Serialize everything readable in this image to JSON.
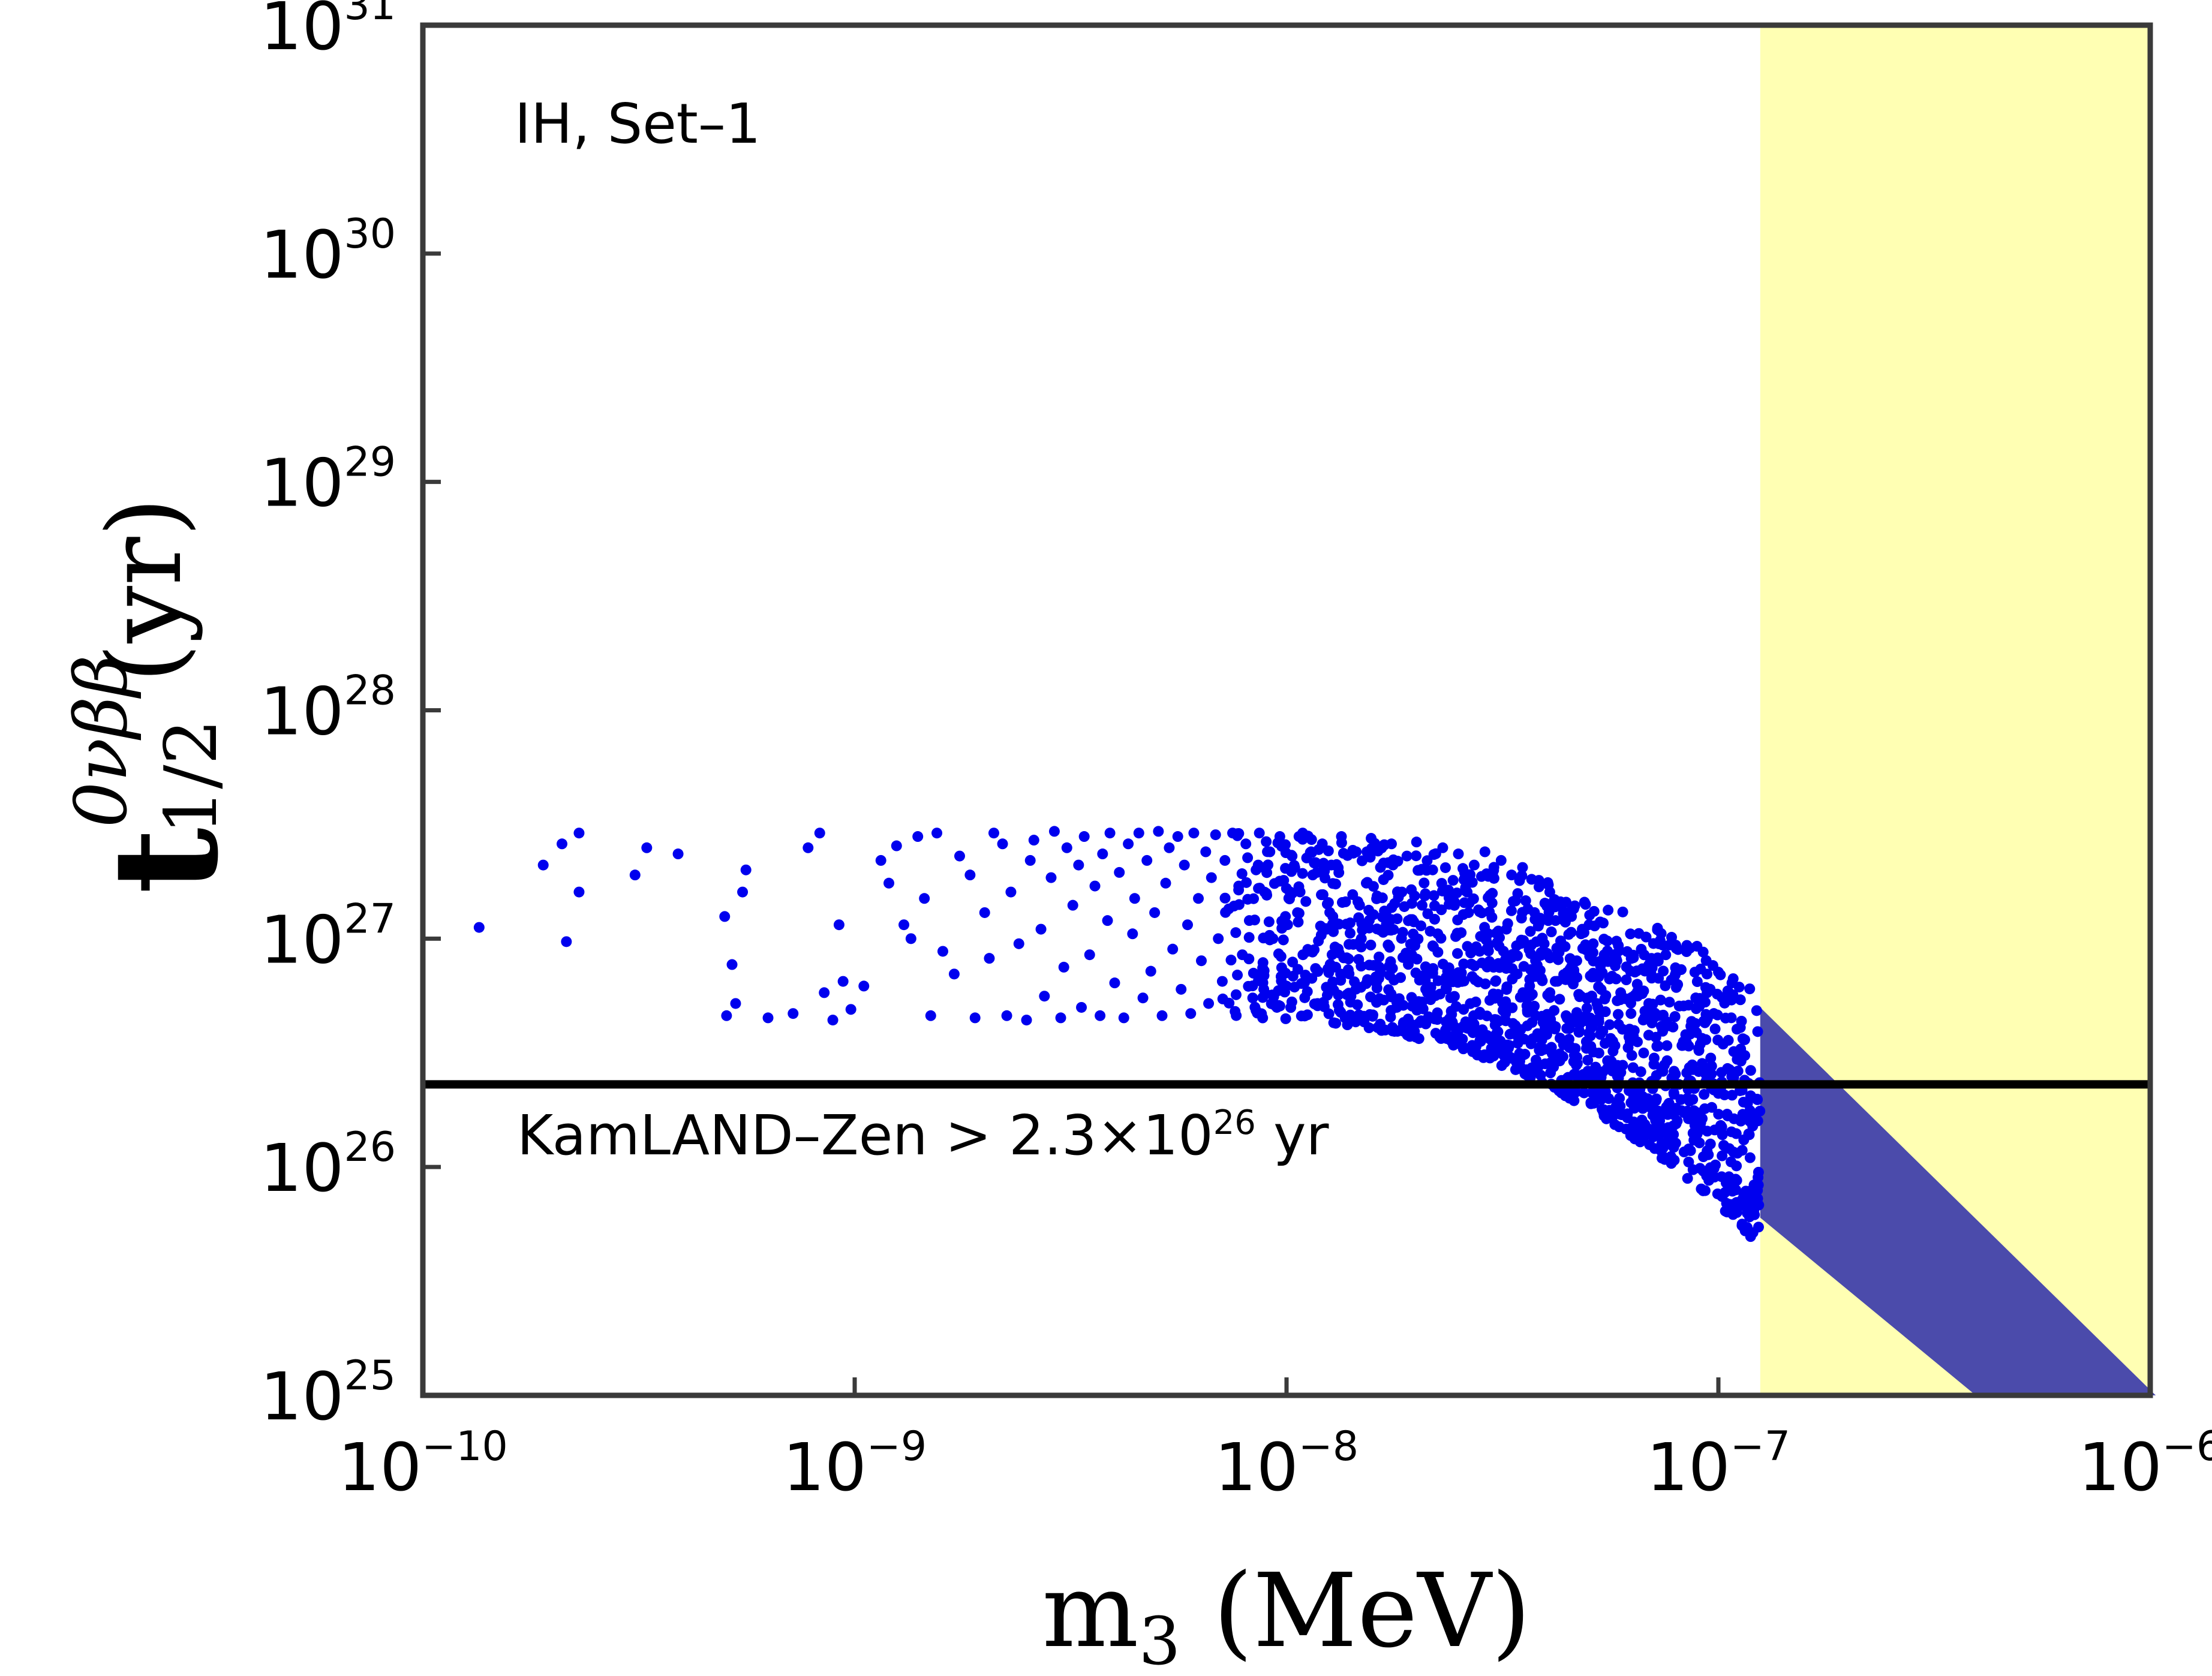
{
  "chart_data": {
    "type": "scatter",
    "title": "",
    "x_scale": "log",
    "y_scale": "log",
    "xlim": [
      1e-10,
      1e-06
    ],
    "ylim": [
      1e+25,
      1e+31
    ],
    "x_ticks": [
      {
        "base": "10",
        "exp": "−10",
        "value": 1e-10
      },
      {
        "base": "10",
        "exp": "−9",
        "value": 1e-09
      },
      {
        "base": "10",
        "exp": "−8",
        "value": 1e-08
      },
      {
        "base": "10",
        "exp": "−7",
        "value": 1e-07
      },
      {
        "base": "10",
        "exp": "−6",
        "value": 1e-06
      }
    ],
    "y_ticks": [
      {
        "base": "10",
        "exp": "25",
        "value": 1e+25
      },
      {
        "base": "10",
        "exp": "26",
        "value": 1e+26
      },
      {
        "base": "10",
        "exp": "27",
        "value": 1e+27
      },
      {
        "base": "10",
        "exp": "28",
        "value": 1e+28
      },
      {
        "base": "10",
        "exp": "29",
        "value": 1e+29
      },
      {
        "base": "10",
        "exp": "30",
        "value": 1e+30
      },
      {
        "base": "10",
        "exp": "31",
        "value": 1e+31
      }
    ],
    "xlabel": {
      "main": "m",
      "sub": "3",
      "unit": "(MeV)"
    },
    "ylabel": {
      "main": "t",
      "sup": "0νββ",
      "sub": "1/2",
      "unit": "(yr)"
    },
    "annotation": "IH,  Set–1",
    "limit_line": {
      "value": 2.3e+26,
      "label_prefix": "KamLAND–Zen > 2.3×10",
      "label_exp": "26",
      "label_suffix": " yr",
      "color": "#000000"
    },
    "excluded_band": {
      "x_from": 1.25e-07,
      "x_to": 1e-06,
      "color": "#ffffb3"
    },
    "band": {
      "color": "#4b4bab",
      "x_range": [
        1.25e-07,
        8.5e-07
      ],
      "upper_at_start": 5e+26,
      "lower_at_start": 6e+25,
      "slope_decades_per_decade": -1.95
    },
    "series": [
      {
        "color": "#0000ee",
        "points": [
          [
            1.35e-10,
            1.12e+27
          ],
          [
            1.9e-10,
            2.1e+27
          ],
          [
            2.1e-10,
            2.6e+27
          ],
          [
            2.15e-10,
            9.7e+26
          ],
          [
            2.3e-10,
            2.9e+27
          ],
          [
            2.3e-10,
            1.6e+27
          ],
          [
            3.1e-10,
            1.9e+27
          ],
          [
            3.3e-10,
            2.5e+27
          ],
          [
            3.9e-10,
            2.35e+27
          ],
          [
            5e-10,
            1.25e+27
          ],
          [
            5.05e-10,
            4.6e+26
          ],
          [
            5.2e-10,
            7.7e+26
          ],
          [
            5.3e-10,
            5.2e+26
          ],
          [
            5.5e-10,
            1.6e+27
          ],
          [
            5.6e-10,
            2e+27
          ],
          [
            6.3e-10,
            4.5e+26
          ],
          [
            7.2e-10,
            4.7e+26
          ],
          [
            7.8e-10,
            2.5e+27
          ],
          [
            8.3e-10,
            2.9e+27
          ],
          [
            8.5e-10,
            5.8e+26
          ],
          [
            8.9e-10,
            4.4e+26
          ],
          [
            9.2e-10,
            1.15e+27
          ],
          [
            9.4e-10,
            6.5e+26
          ],
          [
            9.8e-10,
            4.9e+26
          ],
          [
            1.05e-09,
            6.2e+26
          ],
          [
            1.15e-09,
            2.2e+27
          ],
          [
            1.2e-09,
            1.75e+27
          ],
          [
            1.25e-09,
            2.55e+27
          ],
          [
            1.3e-09,
            1.15e+27
          ],
          [
            1.35e-09,
            1e+27
          ],
          [
            1.4e-09,
            2.8e+27
          ],
          [
            1.45e-09,
            1.5e+27
          ],
          [
            1.5e-09,
            4.6e+26
          ],
          [
            1.55e-09,
            2.9e+27
          ],
          [
            1.6e-09,
            8.8e+26
          ],
          [
            1.7e-09,
            7e+26
          ],
          [
            1.75e-09,
            2.3e+27
          ],
          [
            1.85e-09,
            1.9e+27
          ],
          [
            1.9e-09,
            4.5e+26
          ],
          [
            2e-09,
            1.3e+27
          ],
          [
            2.05e-09,
            8.2e+26
          ],
          [
            2.1e-09,
            2.9e+27
          ],
          [
            2.2e-09,
            2.6e+27
          ],
          [
            2.25e-09,
            4.6e+26
          ],
          [
            2.3e-09,
            1.6e+27
          ],
          [
            2.4e-09,
            9.5e+26
          ],
          [
            2.5e-09,
            4.4e+26
          ],
          [
            2.55e-09,
            2.2e+27
          ],
          [
            2.6e-09,
            2.7e+27
          ],
          [
            2.7e-09,
            1.1e+27
          ],
          [
            2.75e-09,
            5.6e+26
          ],
          [
            2.85e-09,
            1.85e+27
          ],
          [
            2.9e-09,
            2.95e+27
          ],
          [
            3e-09,
            4.5e+26
          ],
          [
            3.05e-09,
            7.5e+26
          ],
          [
            3.1e-09,
            2.5e+27
          ],
          [
            3.2e-09,
            1.4e+27
          ],
          [
            3.3e-09,
            2.1e+27
          ],
          [
            3.35e-09,
            5e+26
          ],
          [
            3.4e-09,
            2.8e+27
          ],
          [
            3.5e-09,
            8.5e+26
          ],
          [
            3.6e-09,
            1.7e+27
          ],
          [
            3.7e-09,
            4.6e+26
          ],
          [
            3.75e-09,
            2.35e+27
          ],
          [
            3.85e-09,
            1.2e+27
          ],
          [
            3.9e-09,
            2.9e+27
          ],
          [
            4e-09,
            6.4e+26
          ],
          [
            4.1e-09,
            1.95e+27
          ],
          [
            4.2e-09,
            4.5e+26
          ],
          [
            4.3e-09,
            2.6e+27
          ],
          [
            4.4e-09,
            1.05e+27
          ],
          [
            4.45e-09,
            1.5e+27
          ],
          [
            4.55e-09,
            2.9e+27
          ],
          [
            4.65e-09,
            5.5e+26
          ],
          [
            4.75e-09,
            2.2e+27
          ],
          [
            4.85e-09,
            7.2e+26
          ],
          [
            4.95e-09,
            1.3e+27
          ],
          [
            5.05e-09,
            2.95e+27
          ],
          [
            5.15e-09,
            4.6e+26
          ],
          [
            5.25e-09,
            1.75e+27
          ],
          [
            5.35e-09,
            2.5e+27
          ],
          [
            5.45e-09,
            9e+26
          ],
          [
            5.6e-09,
            2.8e+27
          ],
          [
            5.7e-09,
            6e+26
          ],
          [
            5.8e-09,
            2.1e+27
          ],
          [
            5.9e-09,
            1.15e+27
          ],
          [
            6e-09,
            4.7e+26
          ],
          [
            6.1e-09,
            2.9e+27
          ],
          [
            6.25e-09,
            1.5e+27
          ],
          [
            6.35e-09,
            8e+26
          ],
          [
            6.5e-09,
            2.4e+27
          ],
          [
            6.6e-09,
            5.2e+26
          ],
          [
            6.7e-09,
            1.85e+27
          ],
          [
            6.85e-09,
            2.85e+27
          ],
          [
            6.95e-09,
            1e+27
          ],
          [
            7.1e-09,
            6.5e+26
          ],
          [
            7.2e-09,
            2.2e+27
          ],
          [
            7.35e-09,
            1.35e+27
          ],
          [
            7.5e-09,
            2.9e+27
          ],
          [
            7.6e-09,
            4.8e+26
          ],
          [
            7.75e-09,
            1.7e+27
          ],
          [
            7.9e-09,
            8.5e+26
          ],
          [
            8.05e-09,
            2.6e+27
          ],
          [
            8.2e-09,
            1.2e+27
          ],
          [
            8.35e-09,
            5.5e+26
          ],
          [
            8.5e-09,
            2e+27
          ],
          [
            8.65e-09,
            2.9e+27
          ],
          [
            8.8e-09,
            7e+26
          ],
          [
            9e-09,
            1.55e+27
          ],
          [
            9.15e-09,
            2.4e+27
          ],
          [
            9.3e-09,
            1e+27
          ],
          [
            9.5e-09,
            5e+26
          ],
          [
            9.65e-09,
            2.8e+27
          ],
          [
            9.85e-09,
            1.8e+27
          ],
          [
            1e-08,
            6.2e+26
          ],
          [
            1.03e-08,
            2.3e+27
          ],
          [
            1.06e-08,
            1.3e+27
          ],
          [
            1.09e-08,
            2.9e+27
          ],
          [
            1.12e-08,
            8.8e+26
          ],
          [
            1.15e-08,
            1.9e+27
          ],
          [
            1.18e-08,
            5.2e+26
          ],
          [
            1.21e-08,
            2.6e+27
          ],
          [
            1.24e-08,
            1.1e+27
          ],
          [
            1.27e-08,
            2.1e+27
          ],
          [
            1.3e-08,
            7.5e+26
          ],
          [
            1.34e-08,
            2.8e+27
          ],
          [
            1.37e-08,
            1.45e+27
          ],
          [
            1.41e-08,
            5.6e+26
          ],
          [
            1.45e-08,
            2.4e+27
          ],
          [
            1.49e-08,
            1e+27
          ],
          [
            1.53e-08,
            1.75e+27
          ],
          [
            1.57e-08,
            2.75e+27
          ],
          [
            1.61e-08,
            6.8e+26
          ],
          [
            1.65e-08,
            2.05e+27
          ],
          [
            1.7e-08,
            1.25e+27
          ],
          [
            1.75e-08,
            2.6e+27
          ],
          [
            1.8e-08,
            5e+26
          ],
          [
            1.85e-08,
            1.6e+27
          ],
          [
            1.9e-08,
            2.3e+27
          ],
          [
            1.95e-08,
            8.5e+26
          ],
          [
            2e-08,
            2.65e+27
          ],
          [
            2.06e-08,
            1.4e+27
          ],
          [
            2.12e-08,
            5.8e+26
          ],
          [
            2.18e-08,
            2e+27
          ],
          [
            2.24e-08,
            1.05e+27
          ],
          [
            2.3e-08,
            2.5e+27
          ],
          [
            2.36e-08,
            7.2e+26
          ],
          [
            2.43e-08,
            1.8e+27
          ],
          [
            2.5e-08,
            2.35e+27
          ],
          [
            2.57e-08,
            4.9e+26
          ],
          [
            2.64e-08,
            1.3e+27
          ],
          [
            2.72e-08,
            2.1e+27
          ],
          [
            2.8e-08,
            8.8e+26
          ],
          [
            2.88e-08,
            2.4e+27
          ],
          [
            2.96e-08,
            1.55e+27
          ],
          [
            3.05e-08,
            5.5e+26
          ],
          [
            3.14e-08,
            2.2e+27
          ],
          [
            3.23e-08,
            1.1e+27
          ],
          [
            3.32e-08,
            1.9e+27
          ],
          [
            3.42e-08,
            7e+26
          ],
          [
            3.52e-08,
            2.05e+27
          ],
          [
            3.62e-08,
            1.35e+27
          ],
          [
            3.73e-08,
            5e+26
          ],
          [
            3.84e-08,
            1.8e+27
          ],
          [
            3.95e-08,
            9.5e+26
          ],
          [
            4.07e-08,
            1.6e+27
          ],
          [
            4.19e-08,
            6.5e+26
          ],
          [
            4.31e-08,
            1.45e+27
          ],
          [
            4.44e-08,
            4.6e+26
          ],
          [
            4.57e-08,
            1.25e+27
          ],
          [
            4.7e-08,
            8e+26
          ],
          [
            4.84e-08,
            1.1e+27
          ],
          [
            4.98e-08,
            5.5e+26
          ],
          [
            5.13e-08,
            9.5e+26
          ],
          [
            5.28e-08,
            6.8e+26
          ],
          [
            5.44e-08,
            8.5e+26
          ],
          [
            5.6e-08,
            4.2e+26
          ],
          [
            5.77e-08,
            7.6e+26
          ],
          [
            5.94e-08,
            5.8e+26
          ],
          [
            6.12e-08,
            6.6e+26
          ],
          [
            6.3e-08,
            3.6e+26
          ],
          [
            6.5e-08,
            5.6e+26
          ],
          [
            6.7e-08,
            4.4e+26
          ],
          [
            6.9e-08,
            5.2e+26
          ],
          [
            7.1e-08,
            3e+26
          ],
          [
            7.35e-08,
            4.6e+26
          ],
          [
            7.6e-08,
            3.4e+26
          ],
          [
            7.85e-08,
            4.1e+26
          ],
          [
            8.1e-08,
            2.3e+26
          ],
          [
            8.4e-08,
            3.8e+26
          ],
          [
            8.7e-08,
            2.8e+26
          ],
          [
            9e-08,
            3.3e+26
          ],
          [
            9.3e-08,
            1.8e+26
          ],
          [
            9.6e-08,
            3e+26
          ],
          [
            1e-07,
            2.1e+26
          ],
          [
            1.05e-07,
            2.7e+26
          ],
          [
            1.1e-07,
            1.4e+26
          ],
          [
            1.15e-07,
            2.4e+26
          ],
          [
            1.2e-07,
            1.7e+26
          ]
        ]
      }
    ],
    "dense_region": {
      "color": "#0000ee",
      "x_from": 7e-09,
      "x_to": 1.25e-07,
      "upper_flat": 2.9e+27,
      "lower_flat": 4.5e+26
    }
  }
}
